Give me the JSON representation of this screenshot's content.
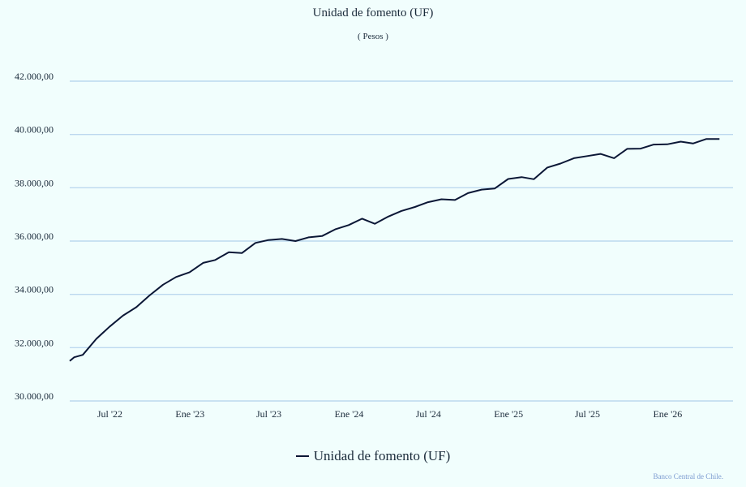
{
  "chart_data": {
    "type": "line",
    "title": "Unidad de fomento (UF)",
    "subtitle": "( Pesos )",
    "ylim": [
      30000,
      42000
    ],
    "y_ticks": [
      {
        "value": 30000,
        "label": "30.000,00"
      },
      {
        "value": 32000,
        "label": "32.000,00"
      },
      {
        "value": 34000,
        "label": "34.000,00"
      },
      {
        "value": 36000,
        "label": "36.000,00"
      },
      {
        "value": 38000,
        "label": "38.000,00"
      },
      {
        "value": 40000,
        "label": "40.000,00"
      },
      {
        "value": 42000,
        "label": "42.000,00"
      }
    ],
    "x_ticks": [
      {
        "value": "2022-07-01",
        "label": "Jul '22"
      },
      {
        "value": "2023-01-01",
        "label": "Ene '23"
      },
      {
        "value": "2023-07-01",
        "label": "Jul '23"
      },
      {
        "value": "2024-01-01",
        "label": "Ene '24"
      },
      {
        "value": "2024-07-01",
        "label": "Jul '24"
      },
      {
        "value": "2025-01-01",
        "label": "Ene '25"
      },
      {
        "value": "2025-07-01",
        "label": "Jul '25"
      },
      {
        "value": "2026-01-01",
        "label": "Ene '26"
      }
    ],
    "xlim": [
      "2022-03-31",
      "2026-05-31"
    ],
    "grid": true,
    "legend_position": "bottom-center",
    "series": [
      {
        "name": "Unidad de fomento (UF)",
        "color": "#0b1736",
        "points": [
          [
            "2022-03-31",
            31500
          ],
          [
            "2022-04-10",
            31640
          ],
          [
            "2022-04-30",
            31730
          ],
          [
            "2022-05-31",
            32330
          ],
          [
            "2022-06-30",
            32780
          ],
          [
            "2022-07-31",
            33200
          ],
          [
            "2022-08-31",
            33520
          ],
          [
            "2022-09-30",
            33960
          ],
          [
            "2022-10-31",
            34360
          ],
          [
            "2022-11-30",
            34650
          ],
          [
            "2022-12-31",
            34830
          ],
          [
            "2023-01-31",
            35180
          ],
          [
            "2023-02-28",
            35290
          ],
          [
            "2023-03-31",
            35580
          ],
          [
            "2023-04-30",
            35550
          ],
          [
            "2023-05-31",
            35930
          ],
          [
            "2023-06-30",
            36040
          ],
          [
            "2023-07-31",
            36080
          ],
          [
            "2023-08-31",
            36000
          ],
          [
            "2023-09-30",
            36140
          ],
          [
            "2023-10-31",
            36190
          ],
          [
            "2023-11-30",
            36440
          ],
          [
            "2023-12-31",
            36600
          ],
          [
            "2024-01-31",
            36840
          ],
          [
            "2024-02-29",
            36650
          ],
          [
            "2024-03-31",
            36920
          ],
          [
            "2024-04-30",
            37130
          ],
          [
            "2024-05-31",
            37280
          ],
          [
            "2024-06-30",
            37460
          ],
          [
            "2024-07-31",
            37570
          ],
          [
            "2024-08-31",
            37540
          ],
          [
            "2024-09-30",
            37800
          ],
          [
            "2024-10-31",
            37930
          ],
          [
            "2024-11-30",
            37970
          ],
          [
            "2024-12-31",
            38330
          ],
          [
            "2025-01-31",
            38400
          ],
          [
            "2025-02-28",
            38320
          ],
          [
            "2025-03-31",
            38760
          ],
          [
            "2025-04-30",
            38910
          ],
          [
            "2025-05-31",
            39110
          ],
          [
            "2025-06-30",
            39190
          ],
          [
            "2025-07-31",
            39270
          ],
          [
            "2025-08-31",
            39110
          ],
          [
            "2025-09-30",
            39460
          ],
          [
            "2025-10-31",
            39470
          ],
          [
            "2025-11-30",
            39620
          ],
          [
            "2025-12-31",
            39630
          ],
          [
            "2026-01-31",
            39730
          ],
          [
            "2026-02-28",
            39660
          ],
          [
            "2026-03-31",
            39830
          ],
          [
            "2026-04-30",
            39830
          ]
        ]
      }
    ]
  },
  "credit": "Banco Central de Chile."
}
